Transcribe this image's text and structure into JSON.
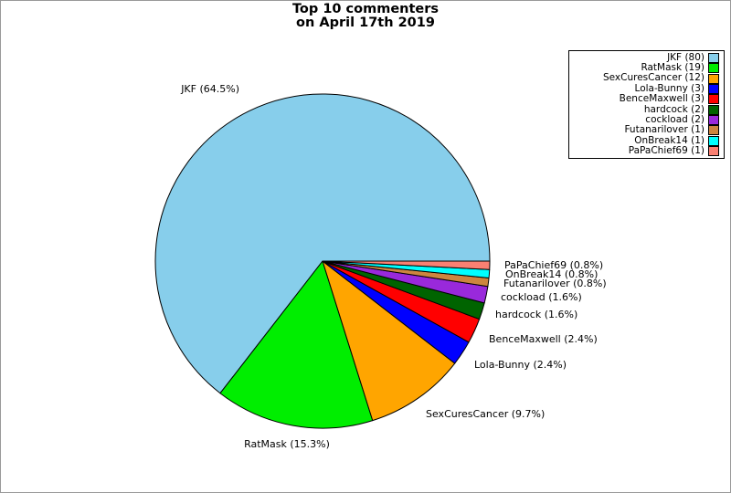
{
  "figure": {
    "background": "#ffffff",
    "border_color": "#999999"
  },
  "chart_data": {
    "type": "pie",
    "title": "Top 10 commenters on April 17th 2019",
    "title_line1": "Top 10 commenters",
    "title_line2": "on April 17th 2019",
    "start_angle_deg": 0,
    "direction": "counterclockwise",
    "edge_color": "#000000",
    "legend_position": "top-right",
    "legend_marker_side": "right",
    "slices": [
      {
        "name": "JKF",
        "count": 80,
        "pct": "64.5%",
        "color": "#87CEEB"
      },
      {
        "name": "RatMask",
        "count": 19,
        "pct": "15.3%",
        "color": "#00EE00"
      },
      {
        "name": "SexCuresCancer",
        "count": 12,
        "pct": "9.7%",
        "color": "#FFA500"
      },
      {
        "name": "Lola-Bunny",
        "count": 3,
        "pct": "2.4%",
        "color": "#0000FF"
      },
      {
        "name": "BenceMaxwell",
        "count": 3,
        "pct": "2.4%",
        "color": "#FF0000"
      },
      {
        "name": "hardcock",
        "count": 2,
        "pct": "1.6%",
        "color": "#006400"
      },
      {
        "name": "cockload",
        "count": 2,
        "pct": "1.6%",
        "color": "#9929DB"
      },
      {
        "name": "Futanarilover",
        "count": 1,
        "pct": "0.8%",
        "color": "#CD853F"
      },
      {
        "name": "OnBreak14",
        "count": 1,
        "pct": "0.8%",
        "color": "#00FFFF"
      },
      {
        "name": "PaPaChief69",
        "count": 1,
        "pct": "0.8%",
        "color": "#FA8072"
      }
    ]
  }
}
